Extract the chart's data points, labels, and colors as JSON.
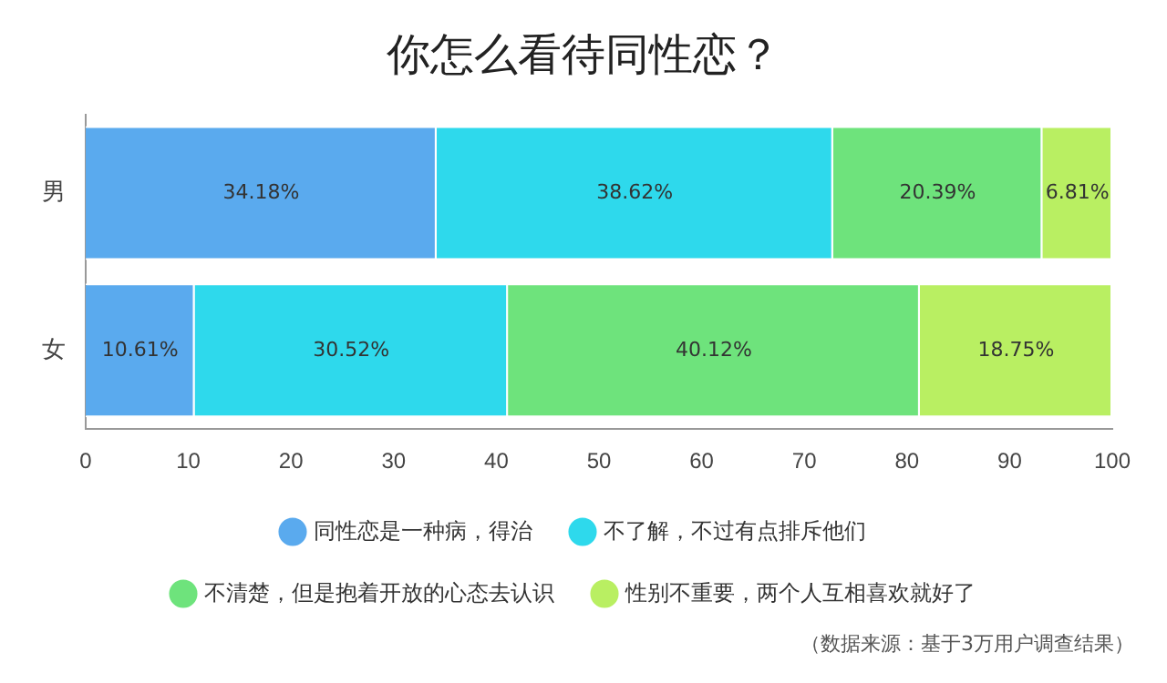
{
  "chart_data": {
    "type": "bar",
    "title": "你怎么看待同性恋？",
    "orientation": "horizontal",
    "stacked": true,
    "categories": [
      "男",
      "女"
    ],
    "series": [
      {
        "name": "同性恋是一种病，得治",
        "color": "#5aaaee",
        "values": [
          34.18,
          10.61
        ],
        "value_labels": [
          "34.18%",
          "10.61%"
        ]
      },
      {
        "name": "不了解，不过有点排斥他们",
        "color": "#2ed9ec",
        "values": [
          38.62,
          30.52
        ],
        "value_labels": [
          "38.62%",
          "30.52%"
        ]
      },
      {
        "name": "不清楚，但是抱着开放的心态去认识",
        "color": "#6ee37c",
        "values": [
          20.39,
          40.12
        ],
        "value_labels": [
          "20.39%",
          "40.12%"
        ]
      },
      {
        "name": "性别不重要，两个人互相喜欢就好了",
        "color": "#b9ef62",
        "values": [
          6.81,
          18.75
        ],
        "value_labels": [
          "6.81%",
          "18.75%"
        ]
      }
    ],
    "xlim": [
      0,
      100
    ],
    "xticks": [
      0,
      10,
      20,
      30,
      40,
      50,
      60,
      70,
      80,
      90,
      100
    ],
    "grid": false,
    "legend": "bottom",
    "annotations": [
      "（数据来源：基于3万用户调查结果）"
    ]
  }
}
